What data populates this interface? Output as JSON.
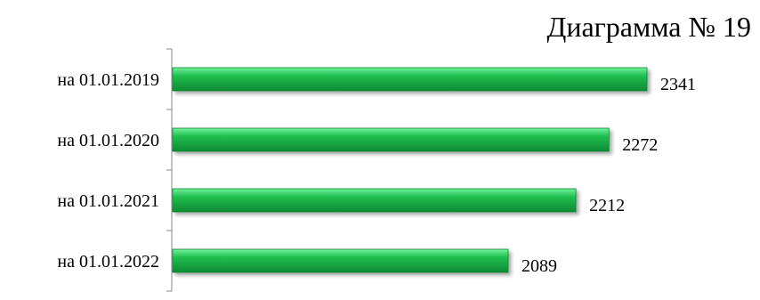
{
  "chart_data": {
    "type": "bar",
    "orientation": "horizontal",
    "title": "Диаграмма № 19",
    "categories": [
      "на 01.01.2019",
      "на 01.01.2020",
      "на 01.01.2021",
      "на 01.01.2022"
    ],
    "values": [
      2341,
      2272,
      2212,
      2089
    ],
    "xlim": [
      1480,
      2341
    ],
    "grid": false,
    "legend": "none",
    "colors": {
      "bar": "#1fbf4f",
      "bar_light": "#6ff29a",
      "bar_dark": "#0e8a33",
      "axis": "#888888"
    }
  }
}
